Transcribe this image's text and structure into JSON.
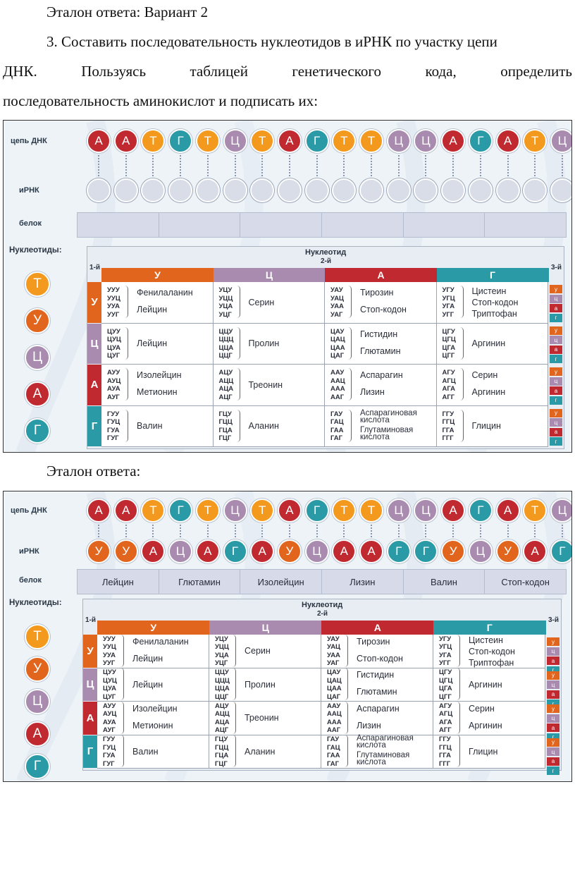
{
  "header": {
    "title": "Эталон ответа: Вариант 2",
    "task_line1": "3. Составить последовательность нуклеотидов в иРНК по участку цепи",
    "task_line2_words": [
      "ДНК.",
      "Пользуясь",
      "таблицей",
      "генетического",
      "кода,",
      "определить"
    ],
    "task_line3": "последовательность аминокислот и подписать их:"
  },
  "answer_title": "Эталон ответа:",
  "colors": {
    "A": "#c0292f",
    "T": "#f39a1e",
    "G": "#2a9aa6",
    "C": "#a98bb0",
    "U": "#e2651d"
  },
  "labels": {
    "dna": "цепь ДНК",
    "mrna": "иРНК",
    "protein": "белок",
    "nucleotides": "Нуклеотиды:",
    "nucleotide": "Нуклеотид",
    "first": "1-й",
    "second": "2-й",
    "third": "3-й"
  },
  "dna": [
    {
      "l": "А",
      "k": "A"
    },
    {
      "l": "А",
      "k": "A"
    },
    {
      "l": "Т",
      "k": "T"
    },
    {
      "l": "Г",
      "k": "G"
    },
    {
      "l": "Т",
      "k": "T"
    },
    {
      "l": "Ц",
      "k": "C"
    },
    {
      "l": "Т",
      "k": "T"
    },
    {
      "l": "А",
      "k": "A"
    },
    {
      "l": "Г",
      "k": "G"
    },
    {
      "l": "Т",
      "k": "T"
    },
    {
      "l": "Т",
      "k": "T"
    },
    {
      "l": "Ц",
      "k": "C"
    },
    {
      "l": "Ц",
      "k": "C"
    },
    {
      "l": "А",
      "k": "A"
    },
    {
      "l": "Г",
      "k": "G"
    },
    {
      "l": "А",
      "k": "A"
    },
    {
      "l": "Т",
      "k": "T"
    },
    {
      "l": "Ц",
      "k": "C"
    }
  ],
  "mrna_answer": [
    {
      "l": "У",
      "k": "U"
    },
    {
      "l": "У",
      "k": "U"
    },
    {
      "l": "А",
      "k": "A"
    },
    {
      "l": "Ц",
      "k": "C"
    },
    {
      "l": "А",
      "k": "A"
    },
    {
      "l": "Г",
      "k": "G"
    },
    {
      "l": "А",
      "k": "A"
    },
    {
      "l": "У",
      "k": "U"
    },
    {
      "l": "Ц",
      "k": "C"
    },
    {
      "l": "А",
      "k": "A"
    },
    {
      "l": "А",
      "k": "A"
    },
    {
      "l": "Г",
      "k": "G"
    },
    {
      "l": "Г",
      "k": "G"
    },
    {
      "l": "У",
      "k": "U"
    },
    {
      "l": "Ц",
      "k": "C"
    },
    {
      "l": "У",
      "k": "U"
    },
    {
      "l": "А",
      "k": "A"
    },
    {
      "l": "Г",
      "k": "G"
    }
  ],
  "protein_answer": [
    "Лейцин",
    "Глютамин",
    "Изолейцин",
    "Лизин",
    "Валин",
    "Стоп-кодон"
  ],
  "legend": [
    {
      "l": "Т",
      "k": "T"
    },
    {
      "l": "У",
      "k": "U"
    },
    {
      "l": "Ц",
      "k": "C"
    },
    {
      "l": "А",
      "k": "A"
    },
    {
      "l": "Г",
      "k": "G"
    }
  ],
  "code_table": {
    "columns": [
      {
        "l": "У",
        "k": "U"
      },
      {
        "l": "Ц",
        "k": "C"
      },
      {
        "l": "А",
        "k": "A"
      },
      {
        "l": "Г",
        "k": "G"
      }
    ],
    "rows": [
      {
        "l": "У",
        "k": "U",
        "cells": [
          {
            "codons": [
              "УУУ",
              "УУЦ",
              "УУА",
              "УУГ"
            ],
            "aa": [
              "Фенилаланин",
              "Лейцин"
            ]
          },
          {
            "codons": [
              "УЦУ",
              "УЦЦ",
              "УЦА",
              "УЦГ"
            ],
            "aa": [
              "Серин"
            ]
          },
          {
            "codons": [
              "УАУ",
              "УАЦ",
              "УАА",
              "УАГ"
            ],
            "aa": [
              "Тирозин",
              "Стоп-кодон"
            ]
          },
          {
            "codons": [
              "УГУ",
              "УГЦ",
              "УГА",
              "УГГ"
            ],
            "aa": [
              "Цистеин",
              "Стоп-кодон",
              "Триптофан"
            ]
          }
        ]
      },
      {
        "l": "Ц",
        "k": "C",
        "cells": [
          {
            "codons": [
              "ЦУУ",
              "ЦУЦ",
              "ЦУА",
              "ЦУГ"
            ],
            "aa": [
              "Лейцин"
            ]
          },
          {
            "codons": [
              "ЦЦУ",
              "ЦЦЦ",
              "ЦЦА",
              "ЦЦГ"
            ],
            "aa": [
              "Пролин"
            ]
          },
          {
            "codons": [
              "ЦАУ",
              "ЦАЦ",
              "ЦАА",
              "ЦАГ"
            ],
            "aa": [
              "Гистидин",
              "Глютамин"
            ]
          },
          {
            "codons": [
              "ЦГУ",
              "ЦГЦ",
              "ЦГА",
              "ЦГГ"
            ],
            "aa": [
              "Аргинин"
            ]
          }
        ]
      },
      {
        "l": "А",
        "k": "A",
        "cells": [
          {
            "codons": [
              "АУУ",
              "АУЦ",
              "АУА",
              "АУГ"
            ],
            "aa": [
              "Изолейцин",
              "Метионин"
            ]
          },
          {
            "codons": [
              "АЦУ",
              "АЦЦ",
              "АЦА",
              "АЦГ"
            ],
            "aa": [
              "Треонин"
            ]
          },
          {
            "codons": [
              "ААУ",
              "ААЦ",
              "ААА",
              "ААГ"
            ],
            "aa": [
              "Аспарагин",
              "Лизин"
            ]
          },
          {
            "codons": [
              "АГУ",
              "АГЦ",
              "АГА",
              "АГГ"
            ],
            "aa": [
              "Серин",
              "Аргинин"
            ]
          }
        ]
      },
      {
        "l": "Г",
        "k": "G",
        "cells": [
          {
            "codons": [
              "ГУУ",
              "ГУЦ",
              "ГУА",
              "ГУГ"
            ],
            "aa": [
              "Валин"
            ]
          },
          {
            "codons": [
              "ГЦУ",
              "ГЦЦ",
              "ГЦА",
              "ГЦГ"
            ],
            "aa": [
              "Аланин"
            ]
          },
          {
            "codons": [
              "ГАУ",
              "ГАЦ",
              "ГАА",
              "ГАГ"
            ],
            "aa": [
              "Аспарагиновая кислота",
              "Глутаминовая кислота"
            ]
          },
          {
            "codons": [
              "ГГУ",
              "ГГЦ",
              "ГГА",
              "ГГГ"
            ],
            "aa": [
              "Глицин"
            ]
          }
        ]
      }
    ],
    "third_letters": [
      {
        "l": "у",
        "k": "U"
      },
      {
        "l": "ц",
        "k": "C"
      },
      {
        "l": "а",
        "k": "A"
      },
      {
        "l": "г",
        "k": "G"
      }
    ]
  }
}
